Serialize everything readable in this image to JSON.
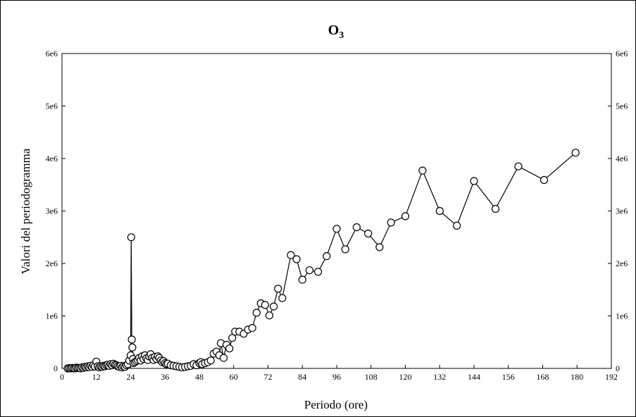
{
  "chart_data": {
    "type": "line",
    "title": "O",
    "title_subscript": "3",
    "xlabel": "Periodo (ore)",
    "ylabel": "Valori del periodogramma",
    "xlim": [
      0,
      192
    ],
    "ylim": [
      0,
      6000000
    ],
    "x_ticks": [
      "0",
      "12",
      "24",
      "36",
      "48",
      "60",
      "72",
      "84",
      "96",
      "108",
      "120",
      "132",
      "144",
      "156",
      "168",
      "180",
      "192"
    ],
    "x_tick_values": [
      0,
      12,
      24,
      36,
      48,
      60,
      72,
      84,
      96,
      108,
      120,
      132,
      144,
      156,
      168,
      180,
      192
    ],
    "y_ticks": [
      "0",
      "1e6",
      "2e6",
      "3e6",
      "4e6",
      "5e6",
      "6e6"
    ],
    "y_tick_values": [
      0,
      1000000,
      2000000,
      3000000,
      4000000,
      5000000,
      6000000
    ],
    "y_ticks_right": [
      "0",
      "1e6",
      "2e6",
      "3e6",
      "4e6",
      "5e6",
      "6e6"
    ],
    "grid": false,
    "marker": "open-circle",
    "series": [
      {
        "points": [
          [
            2.0,
            0
          ],
          [
            2.5,
            5000
          ],
          [
            3.0,
            0
          ],
          [
            3.5,
            10000
          ],
          [
            4.0,
            0
          ],
          [
            4.5,
            0
          ],
          [
            5.0,
            15000
          ],
          [
            5.5,
            5000
          ],
          [
            6.0,
            10000
          ],
          [
            6.5,
            0
          ],
          [
            7.0,
            20000
          ],
          [
            7.5,
            10000
          ],
          [
            8.0,
            30000
          ],
          [
            8.5,
            20000
          ],
          [
            9.0,
            40000
          ],
          [
            9.5,
            25000
          ],
          [
            10.0,
            50000
          ],
          [
            10.5,
            30000
          ],
          [
            11.0,
            60000
          ],
          [
            11.5,
            35000
          ],
          [
            12.0,
            130000
          ],
          [
            12.5,
            40000
          ],
          [
            13.0,
            20000
          ],
          [
            13.5,
            40000
          ],
          [
            14.0,
            30000
          ],
          [
            14.5,
            50000
          ],
          [
            15.0,
            40000
          ],
          [
            15.5,
            60000
          ],
          [
            16.0,
            70000
          ],
          [
            16.5,
            50000
          ],
          [
            17.0,
            80000
          ],
          [
            17.5,
            60000
          ],
          [
            18.0,
            90000
          ],
          [
            18.5,
            70000
          ],
          [
            19.0,
            60000
          ],
          [
            19.5,
            40000
          ],
          [
            20.0,
            30000
          ],
          [
            20.5,
            50000
          ],
          [
            21.0,
            20000
          ],
          [
            21.5,
            40000
          ],
          [
            22.0,
            30000
          ],
          [
            22.5,
            60000
          ],
          [
            23.0,
            80000
          ],
          [
            23.5,
            150000
          ],
          [
            24.0,
            250000
          ],
          [
            24.2,
            2500000
          ],
          [
            24.4,
            550000
          ],
          [
            24.6,
            400000
          ],
          [
            24.8,
            180000
          ],
          [
            25.0,
            100000
          ],
          [
            25.5,
            120000
          ],
          [
            26.0,
            140000
          ],
          [
            26.5,
            160000
          ],
          [
            27.0,
            200000
          ],
          [
            27.5,
            150000
          ],
          [
            28.0,
            230000
          ],
          [
            28.5,
            180000
          ],
          [
            29.0,
            250000
          ],
          [
            29.5,
            190000
          ],
          [
            30.0,
            160000
          ],
          [
            30.5,
            230000
          ],
          [
            31.0,
            270000
          ],
          [
            31.5,
            200000
          ],
          [
            32.0,
            160000
          ],
          [
            32.5,
            220000
          ],
          [
            33.0,
            180000
          ],
          [
            33.5,
            230000
          ],
          [
            34.0,
            200000
          ],
          [
            34.5,
            150000
          ],
          [
            35.0,
            120000
          ],
          [
            35.5,
            140000
          ],
          [
            36.0,
            100000
          ],
          [
            36.5,
            80000
          ],
          [
            37.0,
            90000
          ],
          [
            38.0,
            60000
          ],
          [
            39.0,
            50000
          ],
          [
            40.0,
            40000
          ],
          [
            41.0,
            30000
          ],
          [
            42.0,
            20000
          ],
          [
            43.0,
            30000
          ],
          [
            44.0,
            40000
          ],
          [
            45.0,
            50000
          ],
          [
            46.0,
            80000
          ],
          [
            47.0,
            60000
          ],
          [
            48.0,
            100000
          ],
          [
            48.5,
            120000
          ],
          [
            49.0,
            80000
          ],
          [
            50.0,
            100000
          ],
          [
            51.0,
            120000
          ],
          [
            52.0,
            150000
          ],
          [
            53.0,
            280000
          ],
          [
            54.0,
            320000
          ],
          [
            55.0,
            250000
          ],
          [
            55.5,
            480000
          ],
          [
            56.5,
            200000
          ],
          [
            57.5,
            450000
          ],
          [
            58.5,
            380000
          ],
          [
            59.5,
            580000
          ],
          [
            60.5,
            700000
          ],
          [
            62.0,
            700000
          ],
          [
            63.5,
            660000
          ],
          [
            65.0,
            740000
          ],
          [
            66.5,
            770000
          ],
          [
            68.0,
            1060000
          ],
          [
            69.5,
            1240000
          ],
          [
            71.0,
            1210000
          ],
          [
            72.5,
            1010000
          ],
          [
            74.0,
            1180000
          ],
          [
            75.5,
            1520000
          ],
          [
            77.0,
            1340000
          ],
          [
            80.0,
            2160000
          ],
          [
            82.0,
            2080000
          ],
          [
            84.0,
            1690000
          ],
          [
            86.5,
            1870000
          ],
          [
            89.5,
            1840000
          ],
          [
            92.5,
            2140000
          ],
          [
            96.0,
            2660000
          ],
          [
            99.0,
            2270000
          ],
          [
            103.0,
            2690000
          ],
          [
            107.0,
            2570000
          ],
          [
            111.0,
            2310000
          ],
          [
            115.0,
            2780000
          ],
          [
            120.0,
            2900000
          ],
          [
            126.0,
            3770000
          ],
          [
            132.0,
            3000000
          ],
          [
            138.0,
            2720000
          ],
          [
            144.0,
            3570000
          ],
          [
            151.5,
            3040000
          ],
          [
            159.5,
            3850000
          ],
          [
            168.5,
            3590000
          ],
          [
            179.5,
            4110000
          ]
        ]
      }
    ]
  }
}
